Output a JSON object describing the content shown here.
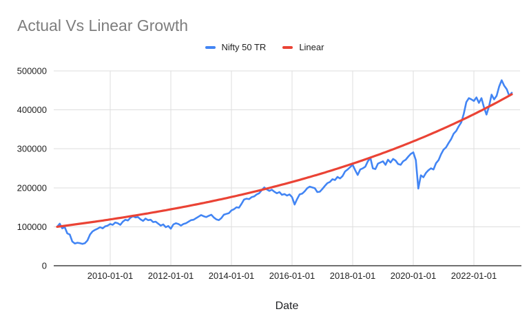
{
  "title": "Actual Vs Linear Growth",
  "legend": [
    {
      "label": "Nifty 50 TR",
      "color": "#4285F4"
    },
    {
      "label": "Linear",
      "color": "#EA4335"
    }
  ],
  "x_axis": {
    "title": "Date",
    "tick_labels": [
      "2010-01-01",
      "2012-01-01",
      "2014-01-01",
      "2016-01-01",
      "2018-01-01",
      "2020-01-01",
      "2022-01-01"
    ]
  },
  "y_axis": {
    "tick_labels": [
      "0",
      "100000",
      "200000",
      "300000",
      "400000",
      "500000"
    ],
    "min": 0,
    "max": 500000
  },
  "colors": {
    "gridline": "#dedede",
    "axis_line": "#6f6f6f",
    "tick_text": "#1f1f1f",
    "title_text": "#7d7d7d"
  },
  "chart_data": {
    "type": "line",
    "title": "Actual Vs Linear Growth",
    "xlabel": "Date",
    "ylabel": "",
    "ylim": [
      0,
      500000
    ],
    "grid": true,
    "legend_position": "top-center",
    "x_start": "2008-04",
    "x_end": "2023-04",
    "x_interval": "monthly",
    "x_tick_labels": [
      "2010-01-01",
      "2012-01-01",
      "2014-01-01",
      "2016-01-01",
      "2018-01-01",
      "2020-01-01",
      "2022-01-01"
    ],
    "series": [
      {
        "name": "Nifty 50 TR",
        "color": "#4285F4",
        "values": [
          100000,
          108000,
          96000,
          99000,
          83000,
          80000,
          62000,
          57000,
          59000,
          58000,
          56000,
          58000,
          65000,
          80000,
          88000,
          92000,
          95000,
          99000,
          96000,
          101000,
          103000,
          107000,
          105000,
          111000,
          109000,
          105000,
          113000,
          118000,
          116000,
          123000,
          127000,
          124000,
          125000,
          119000,
          115000,
          121000,
          117000,
          118000,
          112000,
          113000,
          108000,
          103000,
          106000,
          99000,
          102000,
          95000,
          106000,
          109000,
          107000,
          103000,
          107000,
          109000,
          113000,
          117000,
          118000,
          122000,
          126000,
          130000,
          127000,
          125000,
          128000,
          131000,
          124000,
          119000,
          117000,
          122000,
          131000,
          133000,
          135000,
          142000,
          145000,
          150000,
          149000,
          159000,
          170000,
          172000,
          171000,
          176000,
          178000,
          183000,
          186000,
          194000,
          201000,
          196000,
          192000,
          195000,
          190000,
          186000,
          189000,
          182000,
          184000,
          180000,
          183000,
          176000,
          157000,
          171000,
          183000,
          185000,
          191000,
          199000,
          203000,
          201000,
          199000,
          189000,
          190000,
          197000,
          205000,
          212000,
          215000,
          222000,
          220000,
          228000,
          224000,
          230000,
          242000,
          247000,
          253000,
          259000,
          245000,
          233000,
          247000,
          250000,
          254000,
          268000,
          277000,
          250000,
          248000,
          262000,
          265000,
          268000,
          259000,
          272000,
          265000,
          274000,
          270000,
          261000,
          259000,
          268000,
          272000,
          280000,
          287000,
          291000,
          271000,
          198000,
          232000,
          227000,
          238000,
          245000,
          250000,
          247000,
          263000,
          271000,
          286000,
          298000,
          304000,
          315000,
          325000,
          339000,
          346000,
          358000,
          368000,
          390000,
          420000,
          430000,
          427000,
          423000,
          432000,
          418000,
          430000,
          406000,
          388000,
          409000,
          439000,
          427000,
          436000,
          460000,
          476000,
          462000,
          453000,
          436000,
          444000
        ]
      },
      {
        "name": "Linear",
        "color": "#EA4335",
        "model": "exponential_trend",
        "start_value": 100000,
        "end_value": 440000,
        "yearly_values": [
          100000,
          110400,
          121800,
          134500,
          148400,
          163800,
          180800,
          199600,
          220300,
          243200,
          268400,
          296200,
          327000,
          360900,
          398300,
          439700
        ]
      }
    ]
  }
}
